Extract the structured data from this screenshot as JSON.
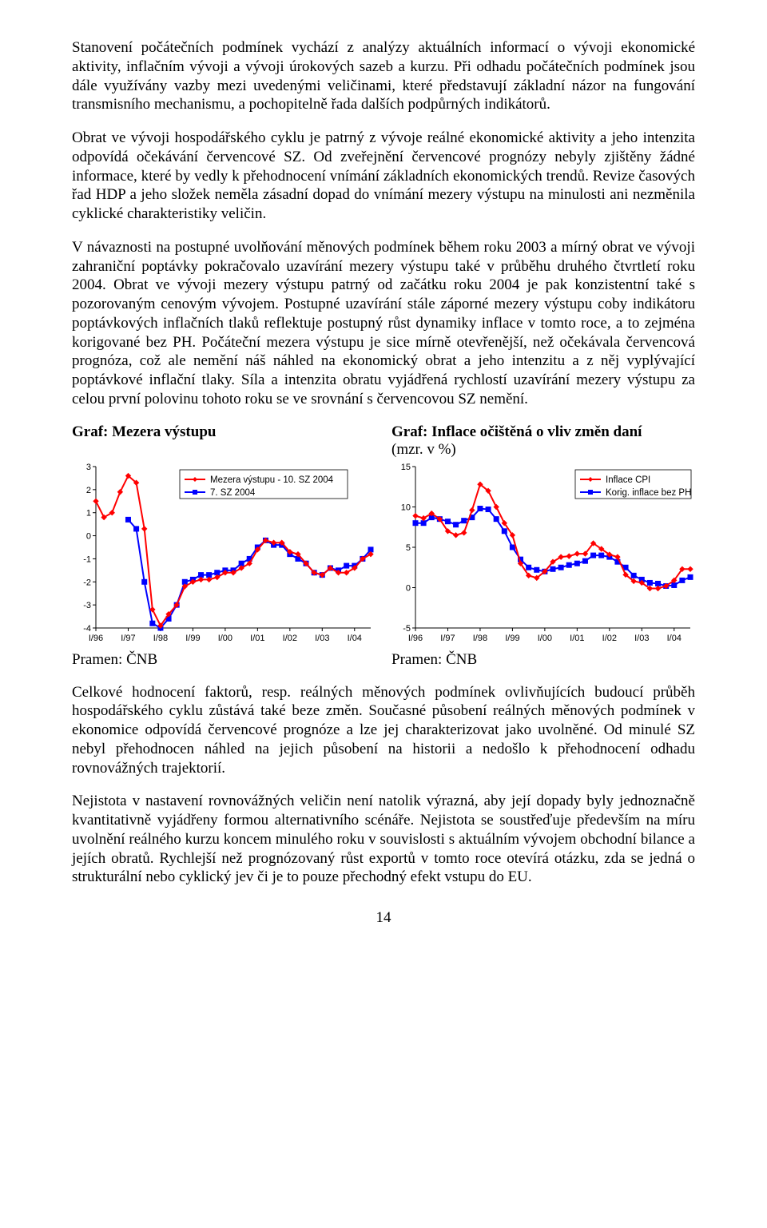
{
  "paragraphs": {
    "p1": "Stanovení počátečních podmínek vychází z analýzy aktuálních informací o vývoji ekonomické aktivity, inflačním vývoji a vývoji úrokových sazeb a kurzu. Při odhadu počátečních podmínek jsou dále využívány vazby mezi uvedenými veličinami, které představují základní názor na fungování transmisního mechanismu, a pochopitelně řada dalších podpůrných indikátorů.",
    "p2": "Obrat ve vývoji hospodářského cyklu je patrný z vývoje reálné ekonomické aktivity a jeho intenzita odpovídá očekávání červencové SZ. Od zveřejnění červencové prognózy nebyly zjištěny žádné informace, které by vedly k přehodnocení vnímání základních ekonomických trendů. Revize časových řad HDP a jeho složek neměla zásadní dopad do vnímání mezery výstupu na minulosti ani nezměnila cyklické charakteristiky veličin.",
    "p3": "V návaznosti na postupné uvolňování měnových podmínek během roku 2003 a mírný obrat ve vývoji zahraniční poptávky pokračovalo uzavírání mezery výstupu také v průběhu druhého čtvrtletí roku 2004. Obrat ve vývoji mezery výstupu patrný od začátku roku 2004 je pak konzistentní také s pozorovaným cenovým vývojem. Postupné uzavírání stále záporné mezery výstupu coby indikátoru poptávkových inflačních tlaků reflektuje postupný růst dynamiky inflace v tomto roce, a to zejména korigované bez PH. Počáteční mezera výstupu je sice mírně otevřenější, než očekávala červencová prognóza, což ale nemění náš náhled na ekonomický obrat a jeho intenzitu a z něj vyplývající poptávkové inflační tlaky. Síla a intenzita obratu vyjádřená rychlostí uzavírání mezery výstupu za celou první polovinu tohoto roku se ve srovnání s červencovou SZ nemění.",
    "p4": "Celkové hodnocení faktorů, resp. reálných měnových podmínek ovlivňujících budoucí průběh hospodářského cyklu zůstává také beze změn. Současné působení reálných měnových podmínek v ekonomice odpovídá červencové prognóze a lze jej charakterizovat jako uvolněné. Od minulé SZ nebyl přehodnocen náhled na jejich působení na historii a nedošlo k přehodnocení odhadu rovnovážných trajektorií.",
    "p5": "Nejistota v nastavení rovnovážných veličin není natolik výrazná, aby její dopady byly jednoznačně kvantitativně vyjádřeny formou alternativního scénáře. Nejistota se soustřeďuje především na míru uvolnění reálného kurzu koncem minulého roku v souvislosti s aktuálním vývojem obchodní bilance a jejích obratů. Rychlejší než prognózovaný růst exportů v tomto roce otevírá otázku, zda se jedná o strukturální nebo cyklický jev či je to pouze přechodný efekt vstupu do EU."
  },
  "chart1": {
    "title": "Graf: Mezera výstupu",
    "source": "Pramen: ČNB",
    "y": {
      "min": -4,
      "max": 3,
      "step": 1
    },
    "x_labels": [
      "I/96",
      "I/97",
      "I/98",
      "I/99",
      "I/00",
      "I/01",
      "I/02",
      "I/03",
      "I/04"
    ],
    "legend": [
      {
        "label": "Mezera výstupu - 10. SZ 2004",
        "color": "#ff0000"
      },
      {
        "label": "7. SZ 2004",
        "color": "#0000ff"
      }
    ],
    "series": {
      "red": [
        1.5,
        0.8,
        1.0,
        1.9,
        2.6,
        2.3,
        0.3,
        -3.2,
        -3.9,
        -3.4,
        -3.0,
        -2.2,
        -2.0,
        -1.9,
        -1.9,
        -1.8,
        -1.6,
        -1.6,
        -1.4,
        -1.2,
        -0.6,
        -0.2,
        -0.3,
        -0.3,
        -0.7,
        -0.8,
        -1.2,
        -1.6,
        -1.7,
        -1.4,
        -1.6,
        -1.6,
        -1.4,
        -1.0,
        -0.8
      ],
      "blue": [
        null,
        null,
        null,
        null,
        0.7,
        0.3,
        -2.0,
        -3.8,
        -4.0,
        -3.6,
        -3.0,
        -2.0,
        -1.9,
        -1.7,
        -1.7,
        -1.6,
        -1.5,
        -1.5,
        -1.2,
        -1.0,
        -0.5,
        -0.2,
        -0.4,
        -0.4,
        -0.8,
        -1.0,
        -1.2,
        -1.6,
        -1.7,
        -1.4,
        -1.5,
        -1.3,
        -1.3,
        -1.0,
        -0.6
      ]
    },
    "colors": {
      "red": "#ff0000",
      "blue": "#0000ff"
    },
    "axis_color": "#000000",
    "axis_fontsize": 11,
    "line_width": 2,
    "marker_size": 3
  },
  "chart2": {
    "title_main": "Graf: Inflace očištěná o vliv změn daní",
    "title_sub": "(mzr. v %)",
    "source": "Pramen: ČNB",
    "y": {
      "min": -5,
      "max": 15,
      "step": 5
    },
    "x_labels": [
      "I/96",
      "I/97",
      "I/98",
      "I/99",
      "I/00",
      "I/01",
      "I/02",
      "I/03",
      "I/04"
    ],
    "legend": [
      {
        "label": "Inflace CPI",
        "color": "#ff0000"
      },
      {
        "label": "Korig. inflace bez PH",
        "color": "#0000ff"
      }
    ],
    "series": {
      "red": [
        8.9,
        8.6,
        9.2,
        8.5,
        7.0,
        6.5,
        6.8,
        9.6,
        12.8,
        12.0,
        10.0,
        8.0,
        6.5,
        3.0,
        1.5,
        1.2,
        2.0,
        3.2,
        3.8,
        3.9,
        4.2,
        4.2,
        5.5,
        4.8,
        4.1,
        3.8,
        1.6,
        0.8,
        0.6,
        -0.1,
        -0.1,
        0.2,
        0.9,
        2.3,
        2.3
      ],
      "blue": [
        8.0,
        8.0,
        8.7,
        8.5,
        8.2,
        7.8,
        8.3,
        8.7,
        9.8,
        9.7,
        8.5,
        7.0,
        5.0,
        3.5,
        2.5,
        2.2,
        2.0,
        2.3,
        2.5,
        2.8,
        3.0,
        3.3,
        4.0,
        4.0,
        3.8,
        3.2,
        2.5,
        1.5,
        1.0,
        0.6,
        0.5,
        0.2,
        0.3,
        0.9,
        1.3
      ]
    },
    "colors": {
      "red": "#ff0000",
      "blue": "#0000ff"
    },
    "axis_color": "#000000",
    "axis_fontsize": 11,
    "line_width": 2,
    "marker_size": 3
  },
  "page_number": "14"
}
